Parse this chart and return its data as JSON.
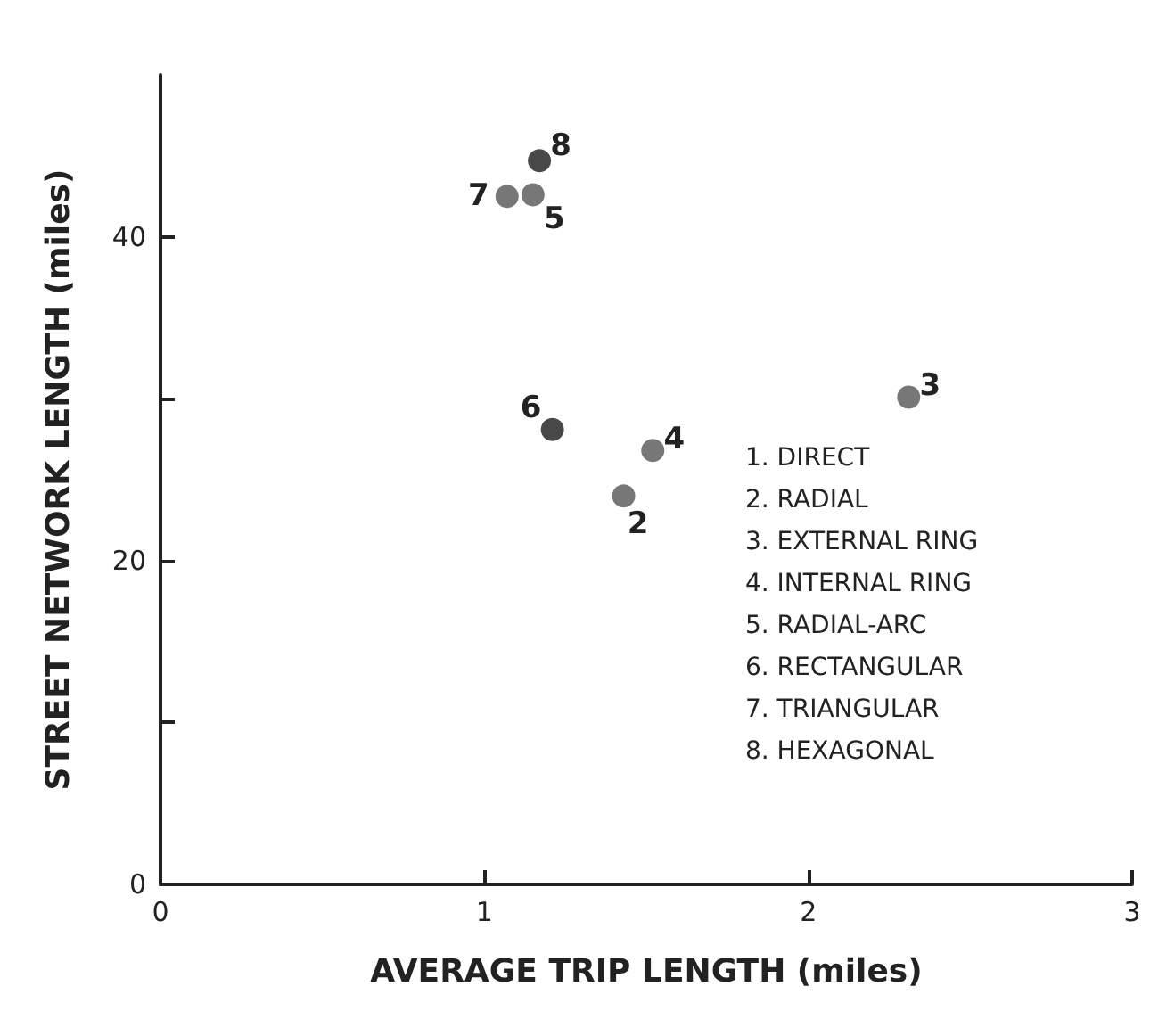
{
  "chart_data": {
    "type": "scatter",
    "xlabel": "AVERAGE TRIP LENGTH (miles)",
    "ylabel": "STREET NETWORK LENGTH (miles)",
    "x": [
      1.43,
      2.31,
      1.52,
      1.15,
      1.21,
      1.07,
      1.17
    ],
    "values": [
      24.0,
      30.1,
      26.8,
      42.6,
      28.1,
      42.5,
      44.7
    ],
    "colors": [
      "#555555",
      "#555555",
      "#555555",
      "#555555",
      "#1a1a1a",
      "#555555",
      "#1a1a1a"
    ],
    "xlim": [
      0,
      3
    ],
    "xticks": [
      0,
      1,
      2,
      3
    ],
    "ylim": [
      0,
      50
    ],
    "yticks": [
      0,
      {
        "value": 10,
        "label": null
      },
      20,
      {
        "value": 30,
        "label": null
      },
      40
    ],
    "grid": false,
    "marker": "circle",
    "annotations": [
      {
        "text": "2",
        "x": 1.43,
        "y": 24.0
      },
      {
        "text": "3",
        "x": 2.31,
        "y": 30.1
      },
      {
        "text": "4",
        "x": 1.52,
        "y": 26.8
      },
      {
        "text": "5",
        "x": 1.15,
        "y": 42.6
      },
      {
        "text": "6",
        "x": 1.21,
        "y": 28.1
      },
      {
        "text": "7",
        "x": 1.07,
        "y": 42.5
      },
      {
        "text": "8",
        "x": 1.17,
        "y": 44.7
      },
      "1. DIRECT",
      "2. RADIAL",
      "3. EXTERNAL RING",
      "4. INTERNAL RING",
      "5. RADIAL-ARC",
      "6. RECTANGULAR",
      "7. TRIANGULAR",
      "8. HEXAGONAL"
    ]
  }
}
